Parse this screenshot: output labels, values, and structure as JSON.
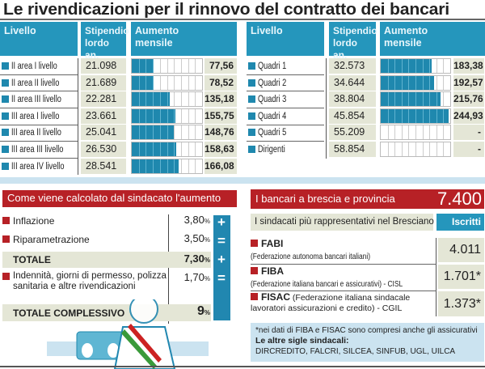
{
  "title": "Le rivendicazioni per il rinnovo del contratto dei bancari",
  "table_headers": {
    "livello": "Livello",
    "stipendio": "Stipendio lordo an.",
    "aumento": "Aumento mensile"
  },
  "left_table": [
    {
      "livello": "II area I livello",
      "stipendio": "21.098",
      "aumento": "77,56",
      "value": 77.56
    },
    {
      "livello": "II area II livello",
      "stipendio": "21.689",
      "aumento": "78,52",
      "value": 78.52
    },
    {
      "livello": "II area III livello",
      "stipendio": "22.281",
      "aumento": "135,18",
      "value": 135.18
    },
    {
      "livello": "III area I livello",
      "stipendio": "23.661",
      "aumento": "155,75",
      "value": 155.75
    },
    {
      "livello": "III area II livello",
      "stipendio": "25.041",
      "aumento": "148,76",
      "value": 148.76
    },
    {
      "livello": "III area III livello",
      "stipendio": "26.530",
      "aumento": "158,63",
      "value": 158.63
    },
    {
      "livello": "III area IV livello",
      "stipendio": "28.541",
      "aumento": "166,08",
      "value": 166.08
    }
  ],
  "right_table": [
    {
      "livello": "Quadri 1",
      "stipendio": "32.573",
      "aumento": "183,38",
      "value": 183.38
    },
    {
      "livello": "Quadri 2",
      "stipendio": "34.644",
      "aumento": "192,57",
      "value": 192.57
    },
    {
      "livello": "Quadri 3",
      "stipendio": "38.804",
      "aumento": "215,76",
      "value": 215.76
    },
    {
      "livello": "Quadri 4",
      "stipendio": "45.854",
      "aumento": "244,93",
      "value": 244.93
    },
    {
      "livello": "Quadri 5",
      "stipendio": "55.209",
      "aumento": "-",
      "value": 0
    },
    {
      "livello": "Dirigenti",
      "stipendio": "58.854",
      "aumento": "-",
      "value": 0
    }
  ],
  "chart_data": {
    "type": "bar",
    "title": "Aumento mensile",
    "bar_max": 250,
    "segments": 10,
    "categories": [
      "II area I livello",
      "II area II livello",
      "II area III livello",
      "III area I livello",
      "III area II livello",
      "III area III livello",
      "III area IV livello",
      "Quadri 1",
      "Quadri 2",
      "Quadri 3",
      "Quadri 4",
      "Quadri 5",
      "Dirigenti"
    ],
    "values": [
      77.56,
      78.52,
      135.18,
      155.75,
      148.76,
      158.63,
      166.08,
      183.38,
      192.57,
      215.76,
      244.93,
      null,
      null
    ]
  },
  "calc": {
    "title": "Come viene calcolato dal sindacato l'aumento richiesto",
    "rows": [
      {
        "label": "Inflazione",
        "value": "3,80",
        "unit": "%",
        "op": "+"
      },
      {
        "label": "Riparametrazione",
        "value": "3,50",
        "unit": "%",
        "op": "="
      },
      {
        "label": "TOTALE",
        "value": "7,30",
        "unit": "%",
        "op": "+"
      },
      {
        "label": "Indennità, giorni di permesso, polizza sanitaria e altre rivendicazioni",
        "value": "1,70",
        "unit": "%",
        "op": "="
      },
      {
        "label": "TOTALE COMPLESSIVO",
        "value": "9",
        "unit": "%"
      }
    ]
  },
  "brescia": {
    "title": "I bancari a brescia e provincia",
    "total": "7.400",
    "subtitle": "I sindacati più rappresentativi nel Bresciano",
    "iscritti_label": "Iscritti",
    "unions": [
      {
        "name": "FABI",
        "desc": "(Federazione autonoma bancari italiani)",
        "iscritti": "4.011"
      },
      {
        "name": "FIBA",
        "desc": "(Federazione italiana bancari e assicurativi) - CISL",
        "iscritti": "1.701*"
      },
      {
        "name": "FISAC",
        "desc": "(Federazione italiana sindacale lavoratori assicurazioni e credito) - CGIL",
        "iscritti": "1.373*"
      }
    ],
    "note": "*nei dati di FIBA e FISAC sono compresi anche gli assicurativi",
    "others_label": "Le altre sigle sindacali:",
    "others": "DIRCREDITO, FALCRI, SILCEA, SINFUB, UGL, UILCA"
  },
  "colors": {
    "blue": "#2596bc",
    "red": "#b72126",
    "beige": "#e4e6d6",
    "lightblue": "#cbe3f0"
  }
}
